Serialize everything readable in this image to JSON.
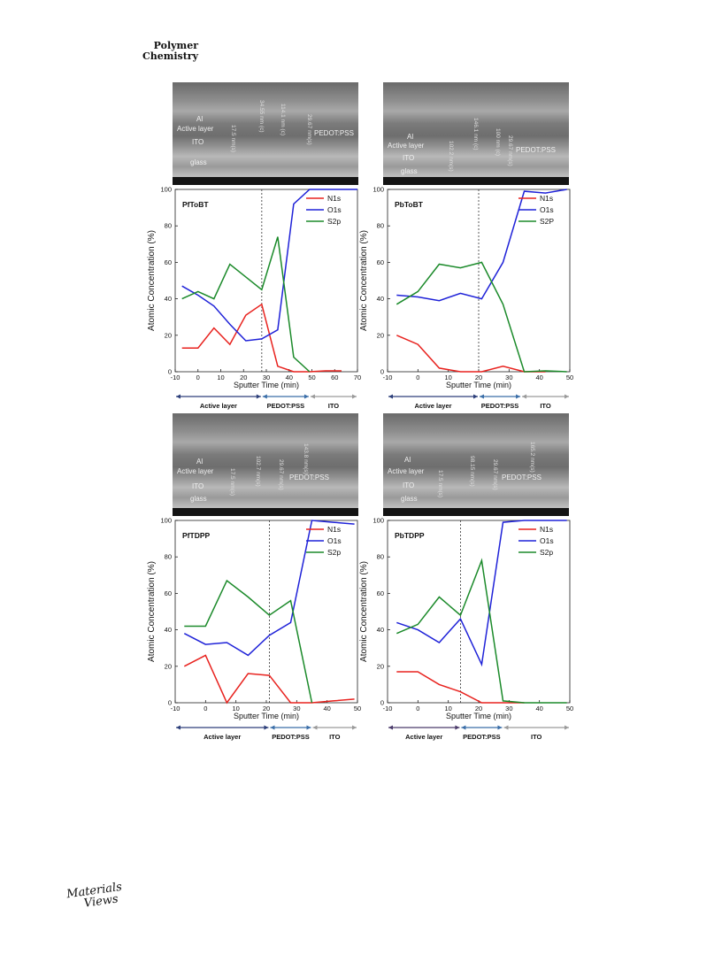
{
  "header": {
    "journal_line1": "Polymer",
    "journal_line2": "Chemistry"
  },
  "footer": {
    "logo_line1": "Materials",
    "logo_line2": "Views"
  },
  "sem_images": [
    {
      "labels": [
        "Al",
        "Active layer",
        "ITO",
        "glass",
        "PEDOT:PSS"
      ],
      "measurements": [
        "17.5 nm(s)",
        "34.55 nm (c)",
        "114.1 nm (c)",
        "29.67 nm(s)"
      ]
    },
    {
      "labels": [
        "Al",
        "Active layer",
        "ITO",
        "glass",
        "PEDOT:PSS"
      ],
      "measurements": [
        "102.2 nm(s)",
        "146.1 nm (c)",
        "100 nm (c)",
        "29.67 nm(s)"
      ]
    },
    {
      "labels": [
        "Al",
        "Active layer",
        "ITO",
        "glass",
        "PEDOT:PSS"
      ],
      "measurements": [
        "17.5 nm(s)",
        "102.7 nm(s)",
        "29.67 nm(s)",
        "143.8 nm(s)"
      ]
    },
    {
      "labels": [
        "Al",
        "Active layer",
        "ITO",
        "glass",
        "PEDOT:PSS"
      ],
      "measurements": [
        "17.5 nm(s)",
        "98.15 nm(s)",
        "29.67 nm(s)",
        "165.2 nm(s)"
      ]
    }
  ],
  "chart_data": [
    {
      "type": "line",
      "title": "PfToBT",
      "xlabel": "Sputter Time (min)",
      "ylabel": "Atomic Concentration (%)",
      "xlim": [
        -10,
        70
      ],
      "ylim": [
        0,
        100
      ],
      "xticks": [
        -10,
        0,
        10,
        20,
        30,
        40,
        50,
        60,
        70
      ],
      "yticks": [
        0,
        20,
        40,
        60,
        80,
        100
      ],
      "divider_x": 28,
      "regions": [
        {
          "label": "Active layer",
          "from": -10,
          "to": 28,
          "color": "#2d3f7a"
        },
        {
          "label": "PEDOT:PSS",
          "from": 28,
          "to": 49,
          "color": "#3a6ea8"
        },
        {
          "label": "ITO",
          "from": 49,
          "to": 70,
          "color": "#9a9a9a"
        }
      ],
      "series": [
        {
          "name": "N1s",
          "color": "#e8221e",
          "x": [
            -7,
            0,
            7,
            14,
            21,
            28,
            35,
            42,
            49,
            56,
            63
          ],
          "y": [
            13,
            13,
            24,
            15,
            31,
            37,
            3,
            0,
            0,
            0.5,
            0.5
          ]
        },
        {
          "name": "O1s",
          "color": "#1f22d8",
          "x": [
            -7,
            0,
            7,
            14,
            21,
            28,
            35,
            42,
            49,
            56,
            63,
            70
          ],
          "y": [
            47,
            42,
            36,
            26,
            17,
            18,
            23,
            92,
            100,
            100,
            100,
            100
          ]
        },
        {
          "name": "S2p",
          "color": "#1b8a2a",
          "x": [
            -7,
            0,
            7,
            14,
            21,
            28,
            35,
            42,
            49
          ],
          "y": [
            40,
            44,
            40,
            59,
            52,
            45,
            74,
            8,
            0
          ]
        }
      ]
    },
    {
      "type": "line",
      "title": "PbToBT",
      "xlabel": "Sputter Time (min)",
      "ylabel": "Atomic Concentration (%)",
      "xlim": [
        -10,
        50
      ],
      "ylim": [
        0,
        100
      ],
      "xticks": [
        -10,
        0,
        10,
        20,
        30,
        40,
        50
      ],
      "yticks": [
        0,
        20,
        40,
        60,
        80,
        100
      ],
      "divider_x": 20,
      "regions": [
        {
          "label": "Active layer",
          "from": -10,
          "to": 20,
          "color": "#2d3f7a"
        },
        {
          "label": "PEDOT:PSS",
          "from": 20,
          "to": 34,
          "color": "#3a6ea8"
        },
        {
          "label": "ITO",
          "from": 34,
          "to": 50,
          "color": "#9a9a9a"
        }
      ],
      "series": [
        {
          "name": "N1s",
          "color": "#e8221e",
          "x": [
            -7,
            0,
            7,
            14,
            21,
            28,
            35,
            42
          ],
          "y": [
            20,
            15,
            2,
            0,
            0,
            3,
            0,
            0
          ]
        },
        {
          "name": "O1s",
          "color": "#1f22d8",
          "x": [
            -7,
            0,
            7,
            14,
            21,
            28,
            35,
            42,
            49
          ],
          "y": [
            42,
            41,
            39,
            43,
            40,
            60,
            99,
            98,
            100
          ]
        },
        {
          "name": "S2P",
          "color": "#1b8a2a",
          "x": [
            -7,
            0,
            7,
            14,
            21,
            28,
            35,
            42,
            49
          ],
          "y": [
            37,
            44,
            59,
            57,
            60,
            37,
            0,
            0.5,
            0
          ]
        }
      ]
    },
    {
      "type": "line",
      "title": "PfTDPP",
      "xlabel": "Sputter Time (min)",
      "ylabel": "Atomic Concentration (%)",
      "xlim": [
        -10,
        50
      ],
      "ylim": [
        0,
        100
      ],
      "xticks": [
        -10,
        0,
        10,
        20,
        30,
        40,
        50
      ],
      "yticks": [
        0,
        20,
        40,
        60,
        80,
        100
      ],
      "divider_x": 21,
      "regions": [
        {
          "label": "Active layer",
          "from": -10,
          "to": 21,
          "color": "#2d3f7a"
        },
        {
          "label": "PEDOT:PSS",
          "from": 21,
          "to": 35,
          "color": "#3a6ea8"
        },
        {
          "label": "ITO",
          "from": 35,
          "to": 50,
          "color": "#9a9a9a"
        }
      ],
      "series": [
        {
          "name": "N1s",
          "color": "#e8221e",
          "x": [
            -7,
            0,
            7,
            14,
            21,
            28,
            35,
            42,
            49
          ],
          "y": [
            20,
            26,
            0,
            16,
            15,
            0,
            0,
            1,
            2
          ]
        },
        {
          "name": "O1s",
          "color": "#1f22d8",
          "x": [
            -7,
            0,
            7,
            14,
            21,
            28,
            35,
            42,
            49
          ],
          "y": [
            38,
            32,
            33,
            26,
            37,
            44,
            100,
            99,
            98
          ]
        },
        {
          "name": "S2p",
          "color": "#1b8a2a",
          "x": [
            -7,
            0,
            7,
            14,
            21,
            28,
            35
          ],
          "y": [
            42,
            42,
            67,
            58,
            48,
            56,
            0
          ]
        }
      ]
    },
    {
      "type": "line",
      "title": "PbTDPP",
      "xlabel": "Sputter Time (min)",
      "ylabel": "Atomic Concentration (%)",
      "xlim": [
        -10,
        50
      ],
      "ylim": [
        0,
        100
      ],
      "xticks": [
        -10,
        0,
        10,
        20,
        30,
        40,
        50
      ],
      "yticks": [
        0,
        20,
        40,
        60,
        80,
        100
      ],
      "divider_x": 14,
      "regions": [
        {
          "label": "Active layer",
          "from": -10,
          "to": 14,
          "color": "#4a3a6a"
        },
        {
          "label": "PEDOT:PSS",
          "from": 14,
          "to": 28,
          "color": "#3a6ea8"
        },
        {
          "label": "ITO",
          "from": 28,
          "to": 50,
          "color": "#9a9a9a"
        }
      ],
      "series": [
        {
          "name": "N1s",
          "color": "#e8221e",
          "x": [
            -7,
            0,
            7,
            14,
            21,
            28,
            35
          ],
          "y": [
            17,
            17,
            10,
            6,
            0,
            0,
            0
          ]
        },
        {
          "name": "O1s",
          "color": "#1f22d8",
          "x": [
            -7,
            0,
            7,
            14,
            21,
            28,
            35,
            42,
            49
          ],
          "y": [
            44,
            40,
            33,
            46,
            21,
            99,
            100,
            100,
            100
          ]
        },
        {
          "name": "S2p",
          "color": "#1b8a2a",
          "x": [
            -7,
            0,
            7,
            14,
            21,
            28,
            35,
            42,
            49
          ],
          "y": [
            38,
            43,
            58,
            48,
            78,
            1,
            0,
            0,
            0
          ]
        }
      ]
    }
  ]
}
